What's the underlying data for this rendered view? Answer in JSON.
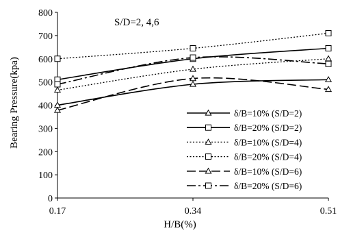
{
  "chart_data": {
    "type": "line",
    "annotation": "S/D=2, 4,6",
    "xlabel": "H/B(%)",
    "ylabel": "Bearing Pressure(kpa)",
    "x": [
      0.17,
      0.34,
      0.51
    ],
    "x_tick_labels": [
      "0.17",
      "0.34",
      "0.51"
    ],
    "xlim": [
      0.17,
      0.51
    ],
    "ylim": [
      0,
      800
    ],
    "y_ticks": [
      0,
      100,
      200,
      300,
      400,
      500,
      600,
      700,
      800
    ],
    "grid": false,
    "legend_position": "bottom-right",
    "series": [
      {
        "name": "δ/B=10% (S/D=2)",
        "values": [
          400,
          490,
          510
        ],
        "line_style": "solid",
        "marker": "triangle"
      },
      {
        "name": "δ/B=20% (S/D=2)",
        "values": [
          510,
          600,
          645
        ],
        "line_style": "solid",
        "marker": "square"
      },
      {
        "name": "δ/B=10% (S/D=4)",
        "values": [
          465,
          555,
          600
        ],
        "line_style": "dotted",
        "marker": "triangle"
      },
      {
        "name": "δ/B=20% (S/D=4)",
        "values": [
          600,
          645,
          710
        ],
        "line_style": "dotted",
        "marker": "square"
      },
      {
        "name": "δ/B=10% (S/D=6)",
        "values": [
          378,
          515,
          468
        ],
        "line_style": "long-dash",
        "marker": "triangle"
      },
      {
        "name": "δ/B=20% (S/D=6)",
        "values": [
          490,
          605,
          578
        ],
        "line_style": "long-dash-dot",
        "marker": "square"
      }
    ]
  }
}
